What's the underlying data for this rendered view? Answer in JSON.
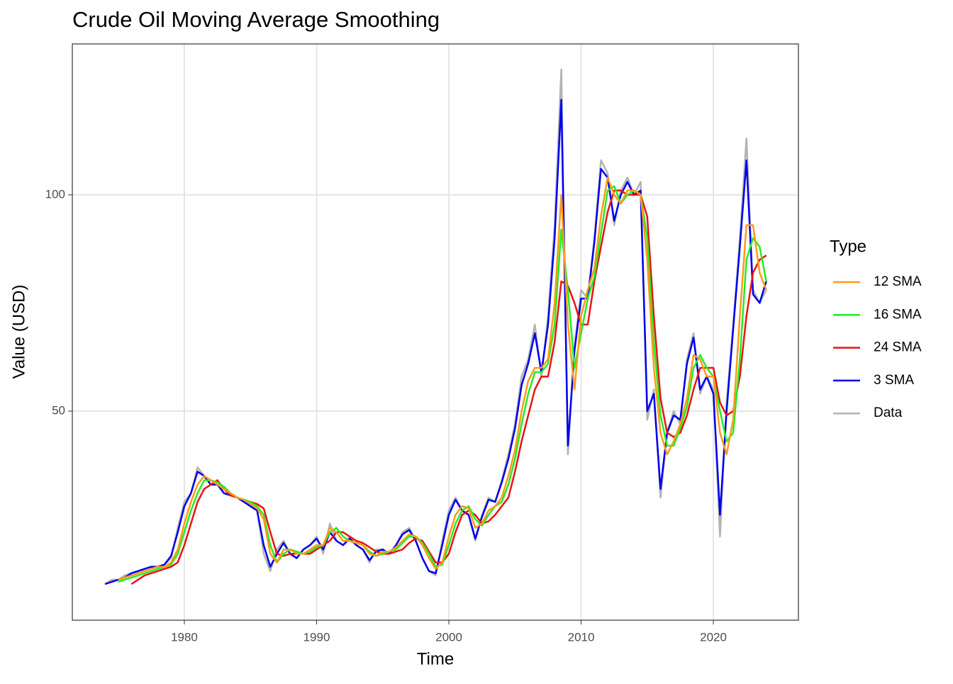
{
  "chart_data": {
    "type": "line",
    "title": "Crude Oil Moving Average Smoothing",
    "x_label": "Time",
    "y_label": "Value (USD)",
    "legend_title": "Type",
    "legend_position": "right",
    "grid": true,
    "xlim": [
      1971.53,
      2026.43
    ],
    "xticks": [
      1980,
      1990,
      2000,
      2010,
      2020
    ],
    "ylim": [
      1.64,
      134.9
    ],
    "yticks": [
      50,
      100
    ],
    "x": [
      1974,
      1974.5,
      1975,
      1975.5,
      1976,
      1976.5,
      1977,
      1977.5,
      1978,
      1978.5,
      1979,
      1979.5,
      1980,
      1980.5,
      1981,
      1981.5,
      1982,
      1982.5,
      1983,
      1983.5,
      1984,
      1984.5,
      1985,
      1985.5,
      1986,
      1986.5,
      1987,
      1987.5,
      1988,
      1988.5,
      1989,
      1989.5,
      1990,
      1990.5,
      1991,
      1991.5,
      1992,
      1992.5,
      1993,
      1993.5,
      1994,
      1994.5,
      1995,
      1995.5,
      1996,
      1996.5,
      1997,
      1997.5,
      1998,
      1998.5,
      1999,
      1999.5,
      2000,
      2000.5,
      2001,
      2001.5,
      2002,
      2002.5,
      2003,
      2003.5,
      2004,
      2004.5,
      2005,
      2005.5,
      2006,
      2006.5,
      2007,
      2007.5,
      2008,
      2008.5,
      2009,
      2009.5,
      2010,
      2010.5,
      2011,
      2011.5,
      2012,
      2012.5,
      2013,
      2013.5,
      2014,
      2014.5,
      2015,
      2015.5,
      2016,
      2016.5,
      2017,
      2017.5,
      2018,
      2018.5,
      2019,
      2019.5,
      2020,
      2020.5,
      2021,
      2021.5,
      2022,
      2022.5,
      2023,
      2023.5,
      2024
    ],
    "series": [
      {
        "name": "12 SMA",
        "color": "#ff9a1a",
        "values": [
          null,
          null,
          11,
          11.5,
          12,
          12.5,
          13,
          13.5,
          14,
          14,
          15,
          18,
          24,
          29,
          33,
          35,
          34,
          33,
          32,
          31,
          30,
          29.5,
          28.5,
          27.5,
          25,
          17,
          15,
          18,
          18,
          17,
          17,
          18,
          19,
          19,
          23,
          22,
          20,
          20,
          19.5,
          19,
          17,
          16.5,
          17.5,
          17.5,
          18.5,
          20,
          21.5,
          21,
          19,
          16,
          13.5,
          15,
          21,
          26,
          28,
          27.5,
          23,
          24,
          27,
          28,
          30,
          35,
          41,
          50,
          57,
          60,
          60,
          62,
          75,
          100,
          70,
          55,
          72,
          78,
          83,
          95,
          104,
          100,
          98,
          101,
          101,
          100,
          85,
          60,
          45,
          40,
          43,
          47,
          53,
          63,
          62,
          58,
          58,
          45,
          40,
          48,
          72,
          93,
          93,
          82,
          78
        ]
      },
      {
        "name": "16 SMA",
        "color": "#22ee22",
        "values": [
          null,
          null,
          10.5,
          11,
          11.5,
          12,
          12.5,
          13,
          13.5,
          14,
          14.5,
          17,
          22,
          27,
          31,
          34,
          34,
          33.5,
          32.5,
          31,
          30,
          29.5,
          29,
          28,
          26,
          19,
          15,
          17,
          18,
          17.5,
          17,
          17.5,
          18.5,
          19,
          22,
          23,
          21,
          20,
          19.5,
          19,
          17.5,
          16.5,
          17,
          17.5,
          18,
          19.5,
          21,
          21,
          19.5,
          17,
          14,
          14.5,
          19,
          24,
          27,
          28,
          25,
          23.5,
          26,
          28,
          29,
          33,
          39,
          47,
          54,
          59,
          59,
          61,
          70,
          92,
          78,
          60,
          68,
          76,
          81,
          91,
          101,
          102,
          98,
          100,
          101,
          100,
          90,
          66,
          49,
          42,
          42,
          46,
          51,
          60,
          63,
          60,
          58,
          50,
          43,
          45,
          62,
          85,
          90,
          88,
          80
        ]
      },
      {
        "name": "24 SMA",
        "color": "#ee1111",
        "values": [
          null,
          null,
          null,
          null,
          10,
          11,
          12,
          12.5,
          13,
          13.5,
          14,
          15,
          19,
          24,
          29,
          32,
          33,
          34,
          32,
          30.5,
          30,
          29.5,
          29,
          28.5,
          27.5,
          22,
          17,
          16.5,
          17,
          17,
          17,
          17,
          18,
          19,
          20,
          22,
          22,
          21,
          20,
          19.5,
          18.5,
          17.5,
          17,
          17,
          17.5,
          18,
          19.5,
          20.5,
          20,
          17.5,
          15,
          15,
          17,
          22,
          26,
          27,
          26,
          24,
          24.5,
          26,
          28,
          30,
          36,
          43,
          49,
          55,
          58,
          58,
          66,
          80,
          79,
          75,
          70,
          70,
          80,
          88,
          96,
          101,
          101,
          100,
          100,
          100,
          95,
          72,
          53,
          45,
          44,
          45,
          49,
          55,
          60,
          60,
          60,
          52,
          49,
          50,
          58,
          72,
          82,
          85,
          86
        ]
      },
      {
        "name": "3 SMA",
        "color": "#0000ee",
        "values": [
          10,
          10.5,
          11,
          11.5,
          12.5,
          13,
          13.5,
          14,
          14,
          14.5,
          16.5,
          22,
          28,
          31,
          36,
          35,
          33,
          33,
          31,
          30.5,
          30,
          29,
          28,
          27,
          19,
          14,
          17,
          19.5,
          17,
          16,
          18,
          19,
          20.5,
          18,
          22,
          20,
          19,
          20.5,
          19,
          18,
          15.5,
          17.5,
          18,
          17,
          19,
          21.5,
          22.5,
          20,
          16,
          13,
          12.5,
          19,
          26,
          29.5,
          27,
          26,
          20.5,
          25.5,
          29.5,
          29,
          33.5,
          39,
          46,
          56,
          61,
          68,
          59,
          70,
          90,
          122,
          42,
          64,
          76,
          76,
          89,
          106,
          104,
          94,
          100,
          103,
          100,
          101,
          50,
          54,
          32,
          45,
          49,
          48,
          61,
          67,
          55,
          58,
          54,
          26,
          50,
          69,
          88,
          108,
          77,
          75,
          80
        ]
      },
      {
        "name": "Data",
        "color": "#b3b3b3",
        "values": [
          10,
          11,
          11,
          12,
          12.5,
          13,
          13.5,
          14,
          14,
          14.5,
          16,
          23,
          29,
          31,
          37,
          35,
          33,
          34,
          31,
          31,
          30,
          29,
          28,
          27,
          17,
          13,
          18,
          20,
          17,
          16,
          18,
          19,
          21,
          17,
          24,
          20,
          19,
          21,
          19,
          18,
          15,
          18,
          18,
          17,
          19,
          22,
          23,
          20,
          16,
          13,
          12,
          20,
          27,
          30,
          27,
          26,
          20,
          26,
          30,
          29,
          34,
          40,
          47,
          58,
          62,
          70,
          58,
          72,
          93,
          129,
          40,
          65,
          78,
          76,
          90,
          108,
          105,
          93,
          101,
          104,
          100,
          103,
          48,
          55,
          30,
          45,
          50,
          47,
          62,
          68,
          54,
          58,
          55,
          21,
          52,
          70,
          90,
          113,
          78,
          75,
          78
        ]
      }
    ]
  }
}
